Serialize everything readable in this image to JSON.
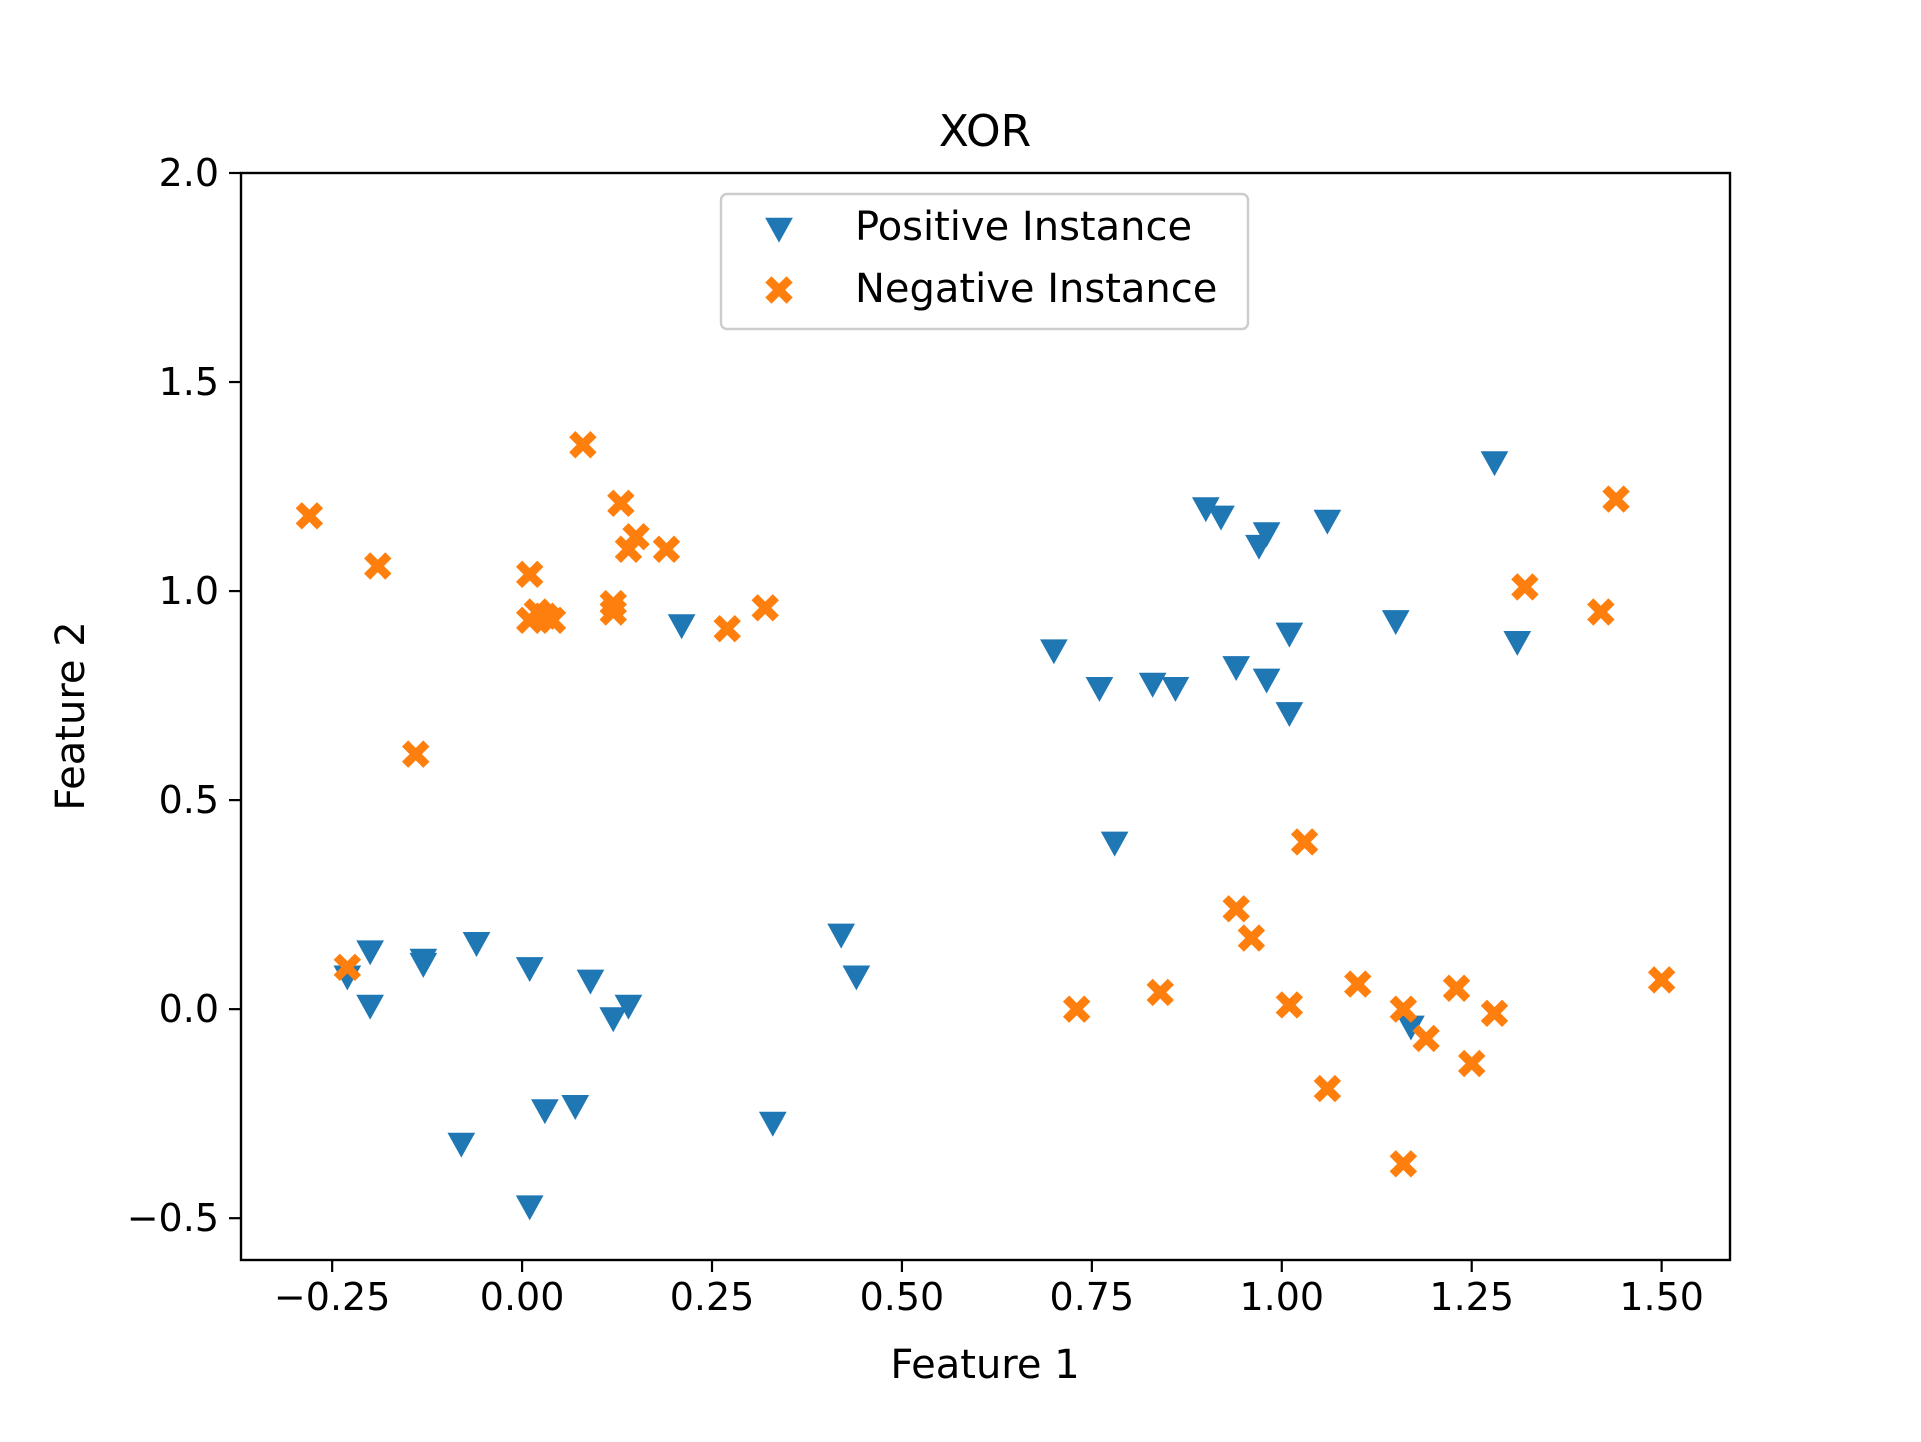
{
  "chart_data": {
    "type": "scatter",
    "title": "XOR",
    "xlabel": "Feature 1",
    "ylabel": "Feature 2",
    "xlim": [
      -0.37,
      1.59
    ],
    "ylim": [
      -0.6,
      2.0
    ],
    "xticks": [
      -0.25,
      0.0,
      0.25,
      0.5,
      0.75,
      1.0,
      1.25,
      1.5
    ],
    "xtick_labels": [
      "−0.25",
      "0.00",
      "0.25",
      "0.50",
      "0.75",
      "1.00",
      "1.25",
      "1.50"
    ],
    "yticks": [
      -0.5,
      0.0,
      0.5,
      1.0,
      1.5,
      2.0
    ],
    "ytick_labels": [
      "−0.5",
      "0.0",
      "0.5",
      "1.0",
      "1.5",
      "2.0"
    ],
    "grid": false,
    "legend_position": "top-center",
    "series": [
      {
        "name": "Positive Instance",
        "marker": "triangle-down",
        "color": "#1f77b4",
        "points": [
          [
            -0.23,
            0.08
          ],
          [
            -0.2,
            0.14
          ],
          [
            -0.2,
            0.01
          ],
          [
            -0.13,
            0.12
          ],
          [
            -0.13,
            0.11
          ],
          [
            -0.06,
            0.16
          ],
          [
            0.01,
            0.1
          ],
          [
            0.09,
            0.07
          ],
          [
            0.12,
            -0.02
          ],
          [
            0.14,
            0.01
          ],
          [
            -0.08,
            -0.32
          ],
          [
            0.03,
            -0.24
          ],
          [
            0.07,
            -0.23
          ],
          [
            0.01,
            -0.47
          ],
          [
            0.33,
            -0.27
          ],
          [
            0.42,
            0.18
          ],
          [
            0.44,
            0.08
          ],
          [
            0.21,
            0.92
          ],
          [
            0.7,
            0.86
          ],
          [
            0.76,
            0.77
          ],
          [
            0.83,
            0.78
          ],
          [
            0.86,
            0.77
          ],
          [
            0.78,
            0.4
          ],
          [
            0.9,
            1.2
          ],
          [
            0.92,
            1.18
          ],
          [
            0.97,
            1.11
          ],
          [
            0.98,
            1.14
          ],
          [
            1.06,
            1.17
          ],
          [
            0.94,
            0.82
          ],
          [
            0.98,
            0.79
          ],
          [
            1.01,
            0.9
          ],
          [
            1.01,
            0.71
          ],
          [
            1.15,
            0.93
          ],
          [
            1.28,
            1.31
          ],
          [
            1.31,
            0.88
          ],
          [
            1.17,
            -0.04
          ]
        ]
      },
      {
        "name": "Negative Instance",
        "marker": "x-filled",
        "color": "#ff7f0e",
        "points": [
          [
            -0.28,
            1.18
          ],
          [
            -0.19,
            1.06
          ],
          [
            -0.14,
            0.61
          ],
          [
            0.08,
            1.35
          ],
          [
            0.13,
            1.21
          ],
          [
            0.15,
            1.13
          ],
          [
            0.14,
            1.1
          ],
          [
            0.19,
            1.1
          ],
          [
            0.01,
            1.04
          ],
          [
            0.01,
            0.93
          ],
          [
            0.02,
            0.95
          ],
          [
            0.03,
            0.94
          ],
          [
            0.04,
            0.93
          ],
          [
            0.12,
            0.97
          ],
          [
            0.12,
            0.95
          ],
          [
            0.27,
            0.91
          ],
          [
            0.32,
            0.96
          ],
          [
            -0.23,
            0.1
          ],
          [
            0.73,
            0.0
          ],
          [
            0.84,
            0.04
          ],
          [
            0.94,
            0.24
          ],
          [
            0.96,
            0.17
          ],
          [
            1.03,
            0.4
          ],
          [
            1.01,
            0.01
          ],
          [
            1.06,
            -0.19
          ],
          [
            1.1,
            0.06
          ],
          [
            1.16,
            0.0
          ],
          [
            1.16,
            -0.37
          ],
          [
            1.19,
            -0.07
          ],
          [
            1.23,
            0.05
          ],
          [
            1.25,
            -0.13
          ],
          [
            1.28,
            -0.01
          ],
          [
            1.32,
            1.01
          ],
          [
            1.42,
            0.95
          ],
          [
            1.44,
            1.22
          ],
          [
            1.5,
            0.07
          ]
        ]
      }
    ]
  }
}
